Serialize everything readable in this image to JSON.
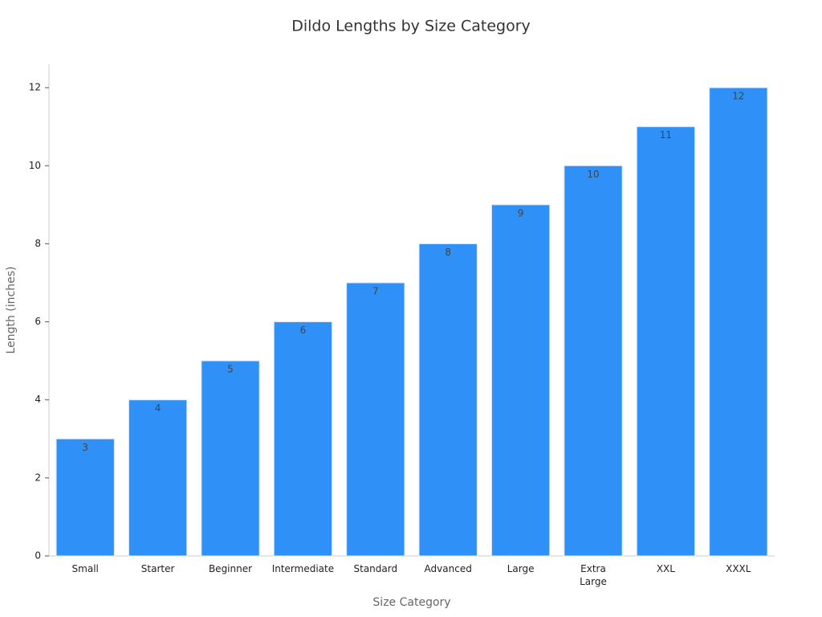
{
  "chart_data": {
    "type": "bar",
    "title": "Dildo Lengths by Size Category",
    "x_label": "Size Category",
    "y_label": "Length (inches)",
    "categories": [
      "Small",
      "Starter",
      "Beginner",
      "Intermediate",
      "Standard",
      "Advanced",
      "Large",
      "Extra Large",
      "XXL",
      "XXXL"
    ],
    "values": [
      3,
      4,
      5,
      6,
      7,
      8,
      9,
      10,
      11,
      12
    ],
    "color": "#2f91f7",
    "ylim": [
      0,
      12.6
    ],
    "yticks": [
      0,
      2,
      4,
      6,
      8,
      10,
      12
    ],
    "grid": false
  }
}
